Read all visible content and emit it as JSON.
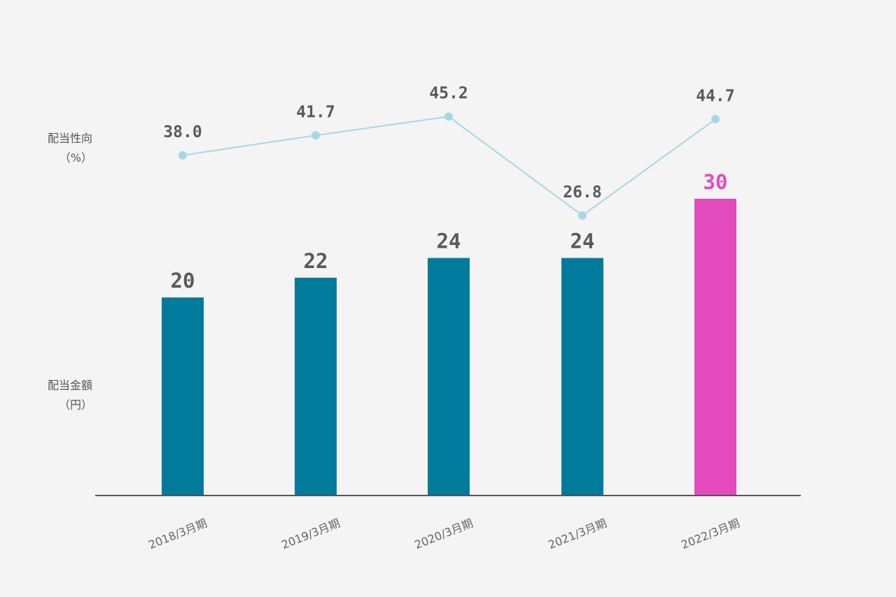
{
  "left_titles": {
    "line_title": "配当性向",
    "line_unit": "（%）",
    "bar_title": "配当金額",
    "bar_unit": "（円）"
  },
  "chart_data": {
    "type": "bar",
    "categories": [
      "2018/3月期",
      "2019/3月期",
      "2020/3月期",
      "2021/3月期",
      "2022/3月期"
    ],
    "series": [
      {
        "name": "配当金額",
        "type": "bar",
        "unit": "円",
        "values": [
          20,
          22,
          24,
          24,
          30
        ],
        "colors": [
          "#007b9c",
          "#007b9c",
          "#007b9c",
          "#007b9c",
          "#e34bbd"
        ]
      },
      {
        "name": "配当性向",
        "type": "line",
        "unit": "%",
        "values": [
          38.0,
          41.7,
          45.2,
          26.8,
          44.7
        ],
        "labels": [
          "38.0",
          "41.7",
          "45.2",
          "26.8",
          "44.7"
        ],
        "color": "#a7d7e3"
      }
    ],
    "label_color": "#5a5a5a",
    "highlight_label_color": "#e34bbd",
    "baseline_color": "#555555"
  }
}
